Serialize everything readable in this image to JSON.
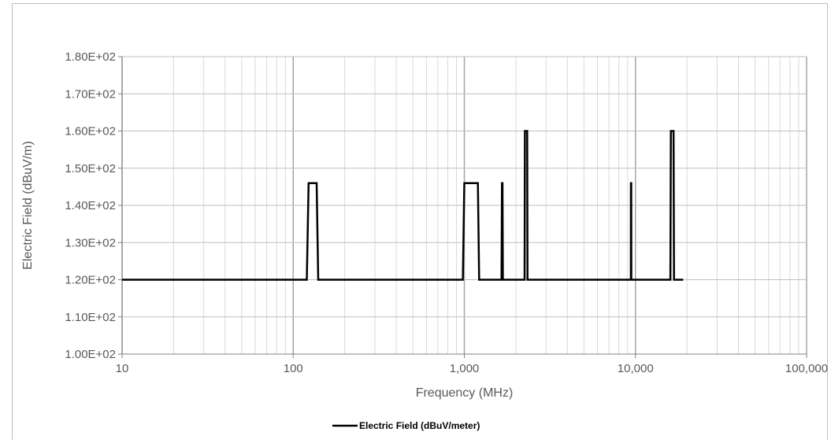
{
  "chart_data": {
    "type": "line",
    "title": "",
    "xlabel": "Frequency (MHz)",
    "ylabel": "Electric Field (dBuV/m)",
    "x_scale": "log",
    "xlim": [
      10,
      100000
    ],
    "ylim": [
      100,
      180
    ],
    "grid": true,
    "legend_position": "bottom",
    "x_ticks": [
      10,
      100,
      1000,
      10000,
      100000
    ],
    "x_tick_labels": [
      "10",
      "100",
      "1,000",
      "10,000",
      "100,000"
    ],
    "y_ticks": [
      100,
      110,
      120,
      130,
      140,
      150,
      160,
      170,
      180
    ],
    "y_tick_labels": [
      "1.00E+02",
      "1.10E+02",
      "1.20E+02",
      "1.30E+02",
      "1.40E+02",
      "1.50E+02",
      "1.60E+02",
      "1.70E+02",
      "1.80E+02"
    ],
    "series": [
      {
        "name": "Electric Field (dBuV/meter)",
        "color": "#000000",
        "points": [
          [
            10,
            120
          ],
          [
            120,
            120
          ],
          [
            123,
            146
          ],
          [
            137,
            146
          ],
          [
            140,
            120
          ],
          [
            980,
            120
          ],
          [
            1000,
            146
          ],
          [
            1200,
            146
          ],
          [
            1220,
            120
          ],
          [
            1650,
            120
          ],
          [
            1660,
            146
          ],
          [
            1670,
            146
          ],
          [
            1680,
            120
          ],
          [
            2250,
            120
          ],
          [
            2260,
            160
          ],
          [
            2330,
            160
          ],
          [
            2340,
            120
          ],
          [
            9400,
            120
          ],
          [
            9410,
            146
          ],
          [
            9450,
            146
          ],
          [
            9460,
            120
          ],
          [
            16000,
            120
          ],
          [
            16100,
            160
          ],
          [
            16700,
            160
          ],
          [
            16800,
            120
          ],
          [
            19000,
            120
          ]
        ]
      }
    ]
  }
}
